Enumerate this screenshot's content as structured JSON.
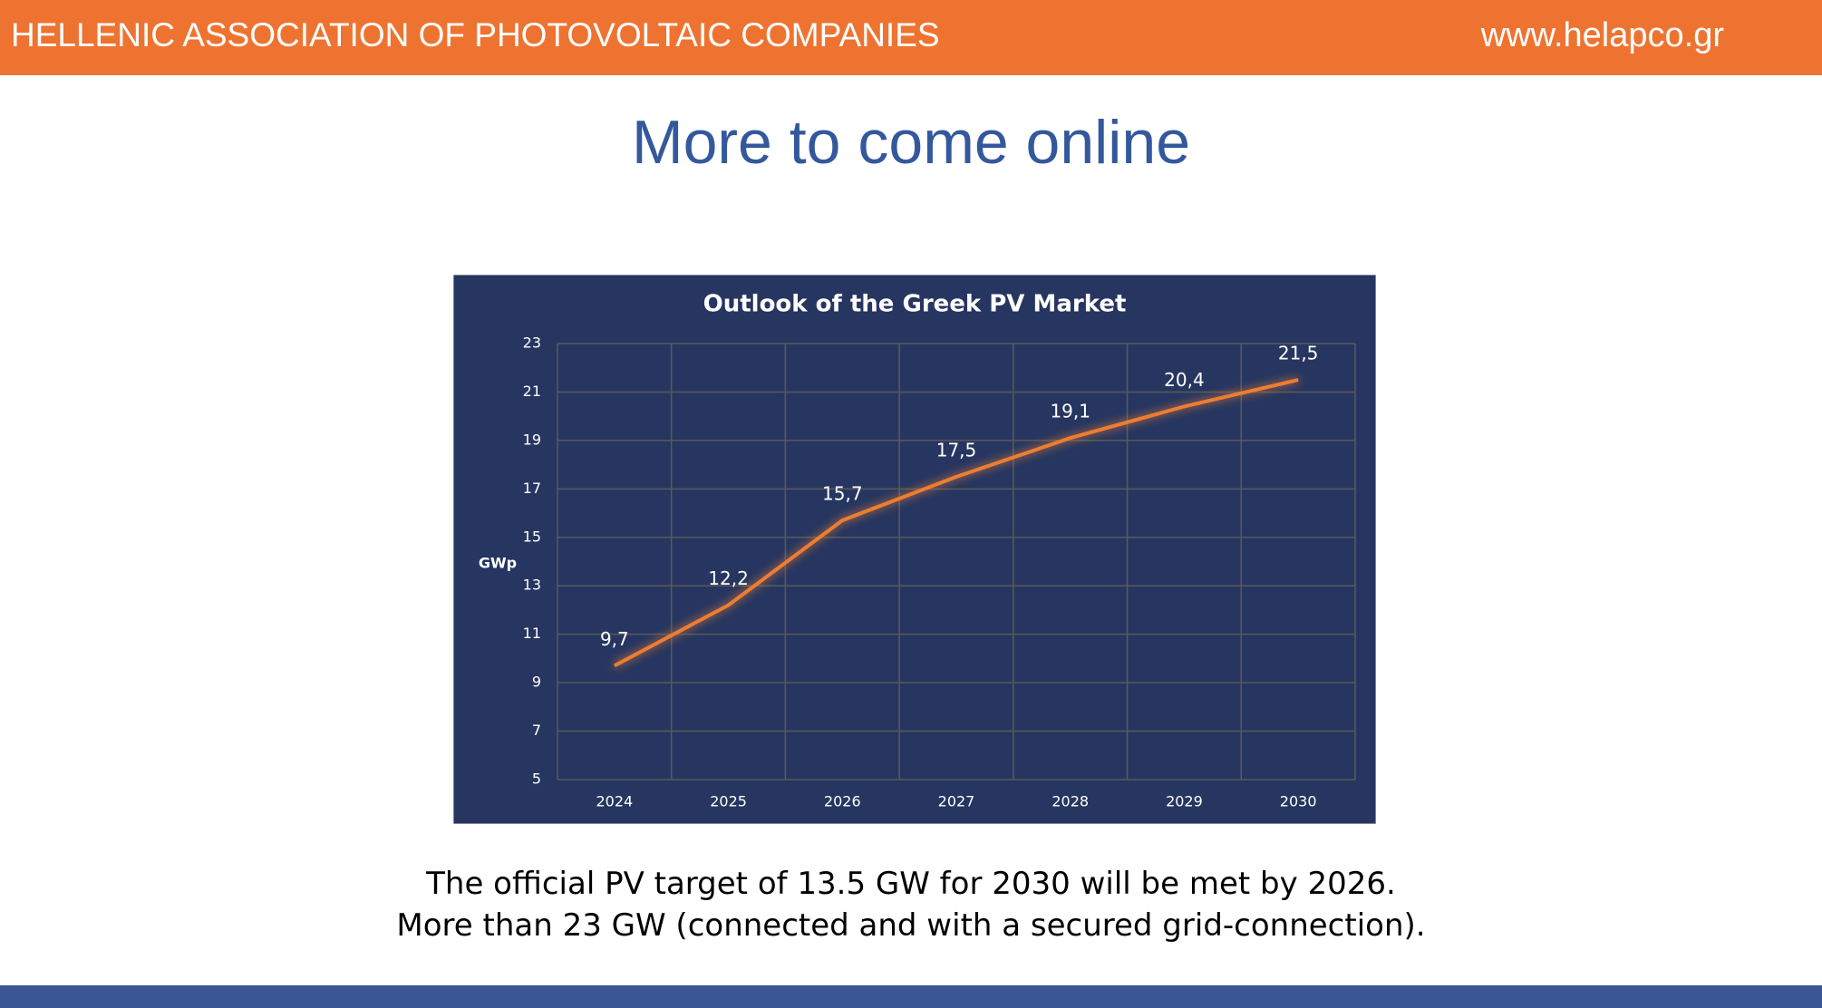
{
  "header": {
    "organization": "HELLENIC ASSOCIATION OF PHOTOVOLTAIC COMPANIES",
    "website": "www.helapco.gr"
  },
  "title": "More to come online",
  "chart_data": {
    "type": "line",
    "title": "Outlook of the Greek PV Market",
    "y_label": "GWp",
    "categories": [
      "2024",
      "2025",
      "2026",
      "2027",
      "2028",
      "2029",
      "2030"
    ],
    "values": [
      9.7,
      12.2,
      15.7,
      17.5,
      19.1,
      20.4,
      21.5
    ],
    "value_labels": [
      "9,7",
      "12,2",
      "15,7",
      "17,5",
      "19,1",
      "20,4",
      "21,5"
    ],
    "color": "#ed7d31",
    "ylim": [
      5,
      23
    ],
    "yticks": [
      5,
      7,
      9,
      11,
      13,
      15,
      17,
      19,
      21,
      23
    ],
    "grid": true
  },
  "notes": [
    "The official PV target of 13.5 GW for 2030 will be met by 2026.",
    "More than 23 GW (connected and with a secured grid-connection)."
  ]
}
